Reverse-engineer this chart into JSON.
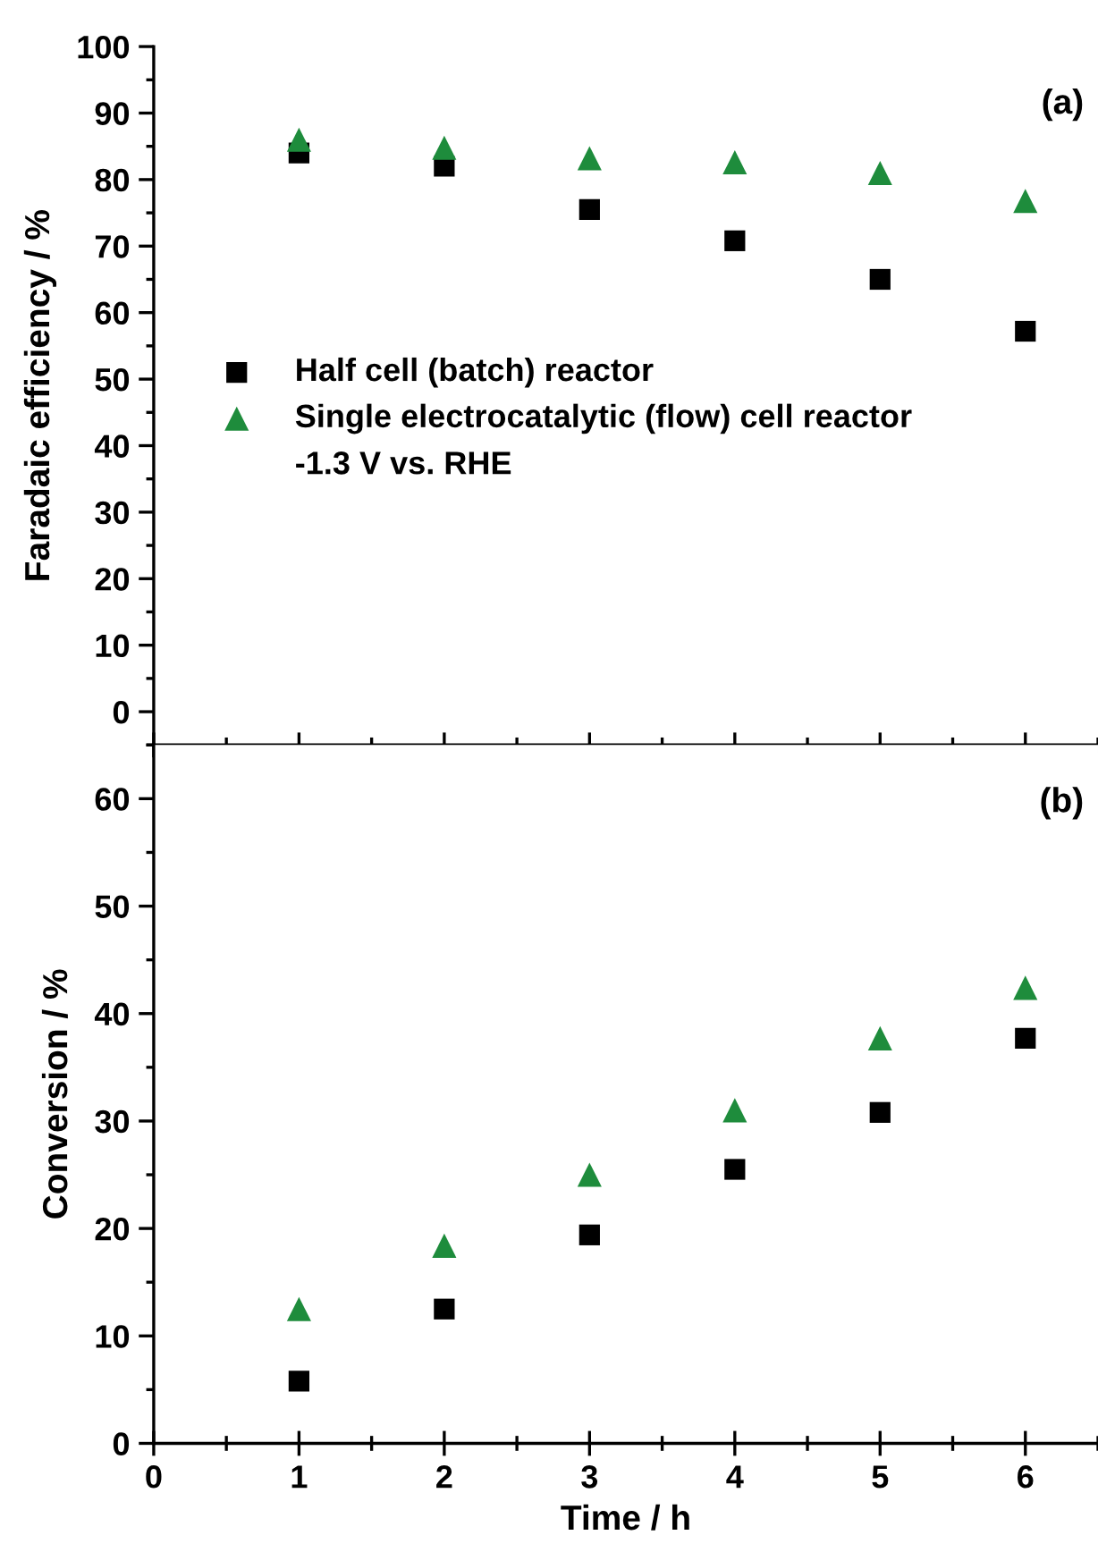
{
  "chart_data": [
    {
      "type": "scatter",
      "ylabel": "Faradaic efficiency / %",
      "annotations": [
        "(a)",
        "-1.3 V vs. RHE"
      ],
      "x": [
        1,
        2,
        3,
        4,
        5,
        6
      ],
      "xlim": [
        0,
        6.5
      ],
      "xticks": [
        0,
        1,
        2,
        3,
        4,
        5,
        6
      ],
      "ylim": [
        -5,
        100
      ],
      "yticks": [
        0,
        10,
        20,
        30,
        40,
        50,
        60,
        70,
        80,
        90,
        100
      ],
      "tick_labels": "y",
      "legend": "left",
      "grid": false,
      "series": [
        {
          "name": "Half cell (batch) reactor",
          "color": "#000000",
          "marker": "square",
          "values": [
            84,
            82,
            75.5,
            70.8,
            65,
            57.2
          ]
        },
        {
          "name": "Single electrocatalytic (flow) cell reactor",
          "color": "#1e8c3c",
          "marker": "triangle",
          "values": [
            86,
            84.8,
            83.2,
            82.6,
            81,
            76.8
          ]
        }
      ]
    },
    {
      "type": "scatter",
      "xlabel": "Time / h",
      "ylabel": "Conversion / %",
      "annotations": [
        "(b)"
      ],
      "x": [
        1,
        2,
        3,
        4,
        5,
        6
      ],
      "xlim": [
        0,
        6.5
      ],
      "xticks": [
        0,
        1,
        2,
        3,
        4,
        5,
        6
      ],
      "ylim": [
        0,
        65
      ],
      "yticks": [
        0,
        10,
        20,
        30,
        40,
        50,
        60
      ],
      "grid": false,
      "series": [
        {
          "color": "#000000",
          "marker": "square",
          "values": [
            5.8,
            12.5,
            19.4,
            25.5,
            30.8,
            37.7
          ]
        },
        {
          "color": "#1e8c3c",
          "marker": "triangle",
          "values": [
            12.5,
            18.4,
            25,
            31,
            37.7,
            42.4
          ]
        }
      ]
    }
  ]
}
